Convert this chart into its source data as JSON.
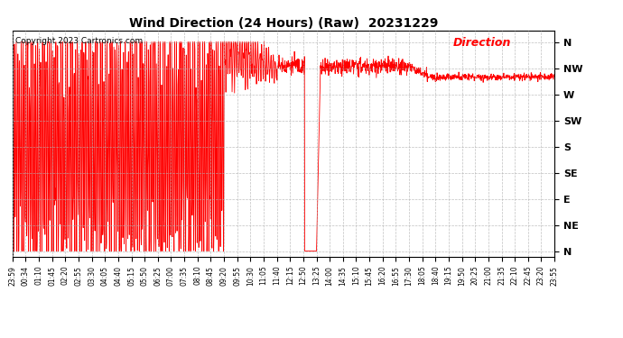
{
  "title": "Wind Direction (24 Hours) (Raw)  20231229",
  "copyright": "Copyright 2023 Cartronics.com",
  "legend_label": "Direction",
  "background_color": "#ffffff",
  "plot_bg_color": "#ffffff",
  "grid_color": "#b0b0b0",
  "line_color": "#ff0000",
  "title_color": "#000000",
  "copyright_color": "#000000",
  "legend_color": "#ff0000",
  "ytick_labels": [
    "N",
    "NW",
    "W",
    "SW",
    "S",
    "SE",
    "E",
    "NE",
    "N"
  ],
  "ytick_values": [
    360,
    315,
    270,
    225,
    180,
    135,
    90,
    45,
    0
  ],
  "ylim": [
    -10,
    380
  ],
  "xtick_labels": [
    "23:59",
    "00:34",
    "01:10",
    "01:45",
    "02:20",
    "02:55",
    "03:30",
    "04:05",
    "04:40",
    "05:15",
    "05:50",
    "06:25",
    "07:00",
    "07:35",
    "08:10",
    "08:45",
    "09:20",
    "09:55",
    "10:30",
    "11:05",
    "11:40",
    "12:15",
    "12:50",
    "13:25",
    "14:00",
    "14:35",
    "15:10",
    "15:45",
    "16:20",
    "16:55",
    "17:30",
    "18:05",
    "18:40",
    "19:15",
    "19:50",
    "20:25",
    "21:00",
    "21:35",
    "22:10",
    "22:45",
    "23:20",
    "23:55"
  ],
  "n_xticks": 42,
  "xlim": [
    0,
    41
  ],
  "chaotic_end_idx": 16,
  "settling_end_idx": 20,
  "steady_nw_end_idx": 28,
  "step_down_idx": 33
}
